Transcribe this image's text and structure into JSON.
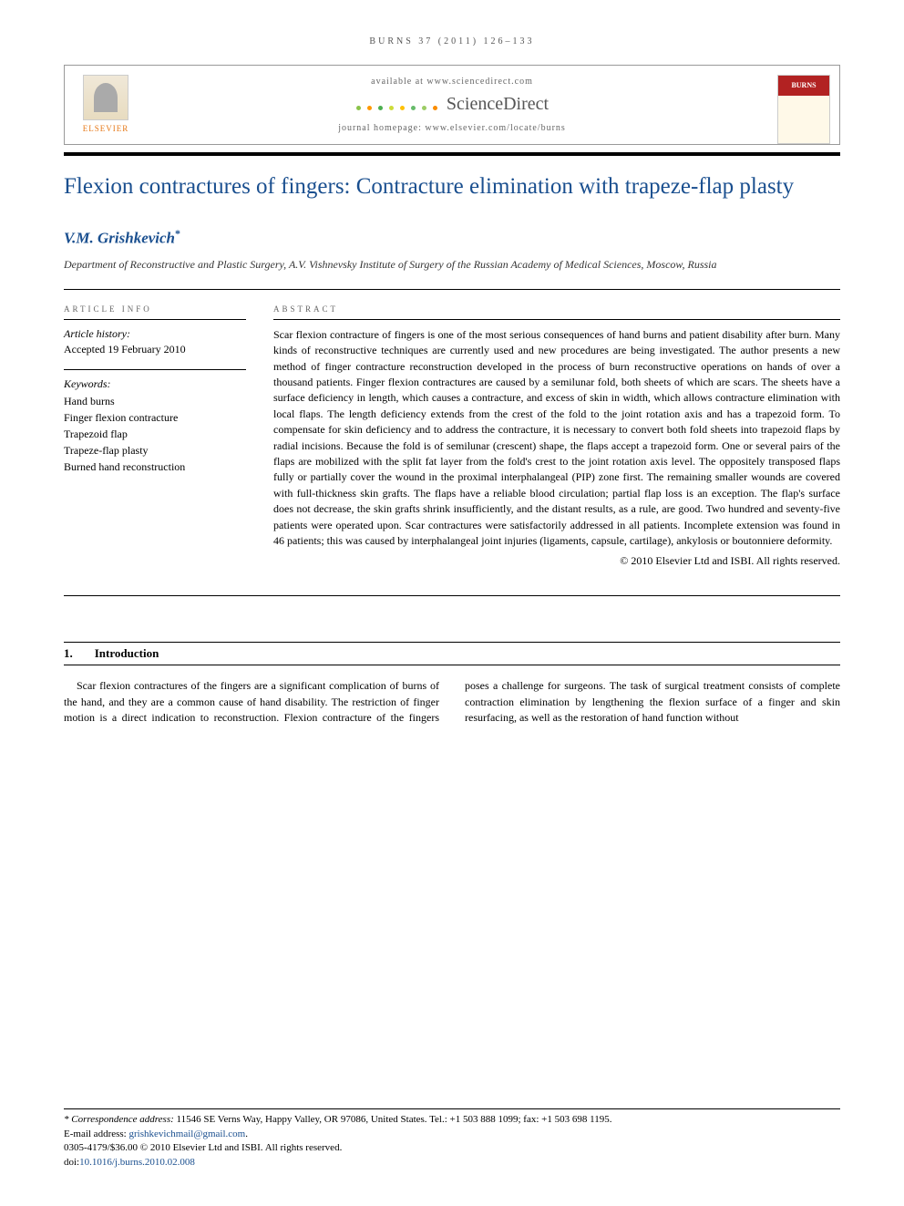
{
  "running_head": "BURNS 37 (2011) 126–133",
  "header": {
    "available": "available at www.sciencedirect.com",
    "logo_text": "ScienceDirect",
    "homepage": "journal homepage: www.elsevier.com/locate/burns",
    "elsevier_label": "ELSEVIER",
    "journal_thumb_title": "BURNS",
    "dot_colors": [
      "#8bc34a",
      "#ff9800",
      "#4caf50",
      "#cddc39",
      "#ffc107",
      "#66bb6a",
      "#9ccc65",
      "#fb8c00"
    ]
  },
  "article": {
    "title": "Flexion contractures of fingers: Contracture elimination with trapeze-flap plasty",
    "author": "V.M. Grishkevich",
    "affiliation": "Department of Reconstructive and Plastic Surgery, A.V. Vishnevsky Institute of Surgery of the Russian Academy of Medical Sciences, Moscow, Russia"
  },
  "info": {
    "heading": "ARTICLE INFO",
    "history_label": "Article history:",
    "history_text": "Accepted 19 February 2010",
    "keywords_label": "Keywords:",
    "keywords": [
      "Hand burns",
      "Finger flexion contracture",
      "Trapezoid flap",
      "Trapeze-flap plasty",
      "Burned hand reconstruction"
    ]
  },
  "abstract": {
    "heading": "ABSTRACT",
    "text": "Scar flexion contracture of fingers is one of the most serious consequences of hand burns and patient disability after burn. Many kinds of reconstructive techniques are currently used and new procedures are being investigated. The author presents a new method of finger contracture reconstruction developed in the process of burn reconstructive operations on hands of over a thousand patients. Finger flexion contractures are caused by a semilunar fold, both sheets of which are scars. The sheets have a surface deficiency in length, which causes a contracture, and excess of skin in width, which allows contracture elimination with local flaps. The length deficiency extends from the crest of the fold to the joint rotation axis and has a trapezoid form. To compensate for skin deficiency and to address the contracture, it is necessary to convert both fold sheets into trapezoid flaps by radial incisions. Because the fold is of semilunar (crescent) shape, the flaps accept a trapezoid form. One or several pairs of the flaps are mobilized with the split fat layer from the fold's crest to the joint rotation axis level. The oppositely transposed flaps fully or partially cover the wound in the proximal interphalangeal (PIP) zone first. The remaining smaller wounds are covered with full-thickness skin grafts. The flaps have a reliable blood circulation; partial flap loss is an exception. The flap's surface does not decrease, the skin grafts shrink insufficiently, and the distant results, as a rule, are good. Two hundred and seventy-five patients were operated upon. Scar contractures were satisfactorily addressed in all patients. Incomplete extension was found in 46 patients; this was caused by interphalangeal joint injuries (ligaments, capsule, cartilage), ankylosis or boutonniere deformity.",
    "copyright": "© 2010 Elsevier Ltd and ISBI. All rights reserved."
  },
  "section1": {
    "num": "1.",
    "title": "Introduction",
    "para": "Scar flexion contractures of the fingers are a significant complication of burns of the hand, and they are a common cause of hand disability. The restriction of finger motion is a direct indication to reconstruction. Flexion contracture of the fingers poses a challenge for surgeons. The task of surgical treatment consists of complete contraction elimination by lengthening the flexion surface of a finger and skin resurfacing, as well as the restoration of hand function without"
  },
  "footer": {
    "correspondence_label": "* Correspondence address:",
    "correspondence": " 11546 SE Verns Way, Happy Valley, OR 97086, United States. Tel.: +1 503 888 1099; fax: +1 503 698 1195.",
    "email_label": "E-mail address: ",
    "email": "grishkevichmail@gmail.com",
    "issn_line": "0305-4179/$36.00 © 2010 Elsevier Ltd and ISBI. All rights reserved.",
    "doi_label": "doi:",
    "doi": "10.1016/j.burns.2010.02.008"
  },
  "colors": {
    "heading_blue": "#1a4f8f",
    "elsevier_orange": "#e67817"
  }
}
